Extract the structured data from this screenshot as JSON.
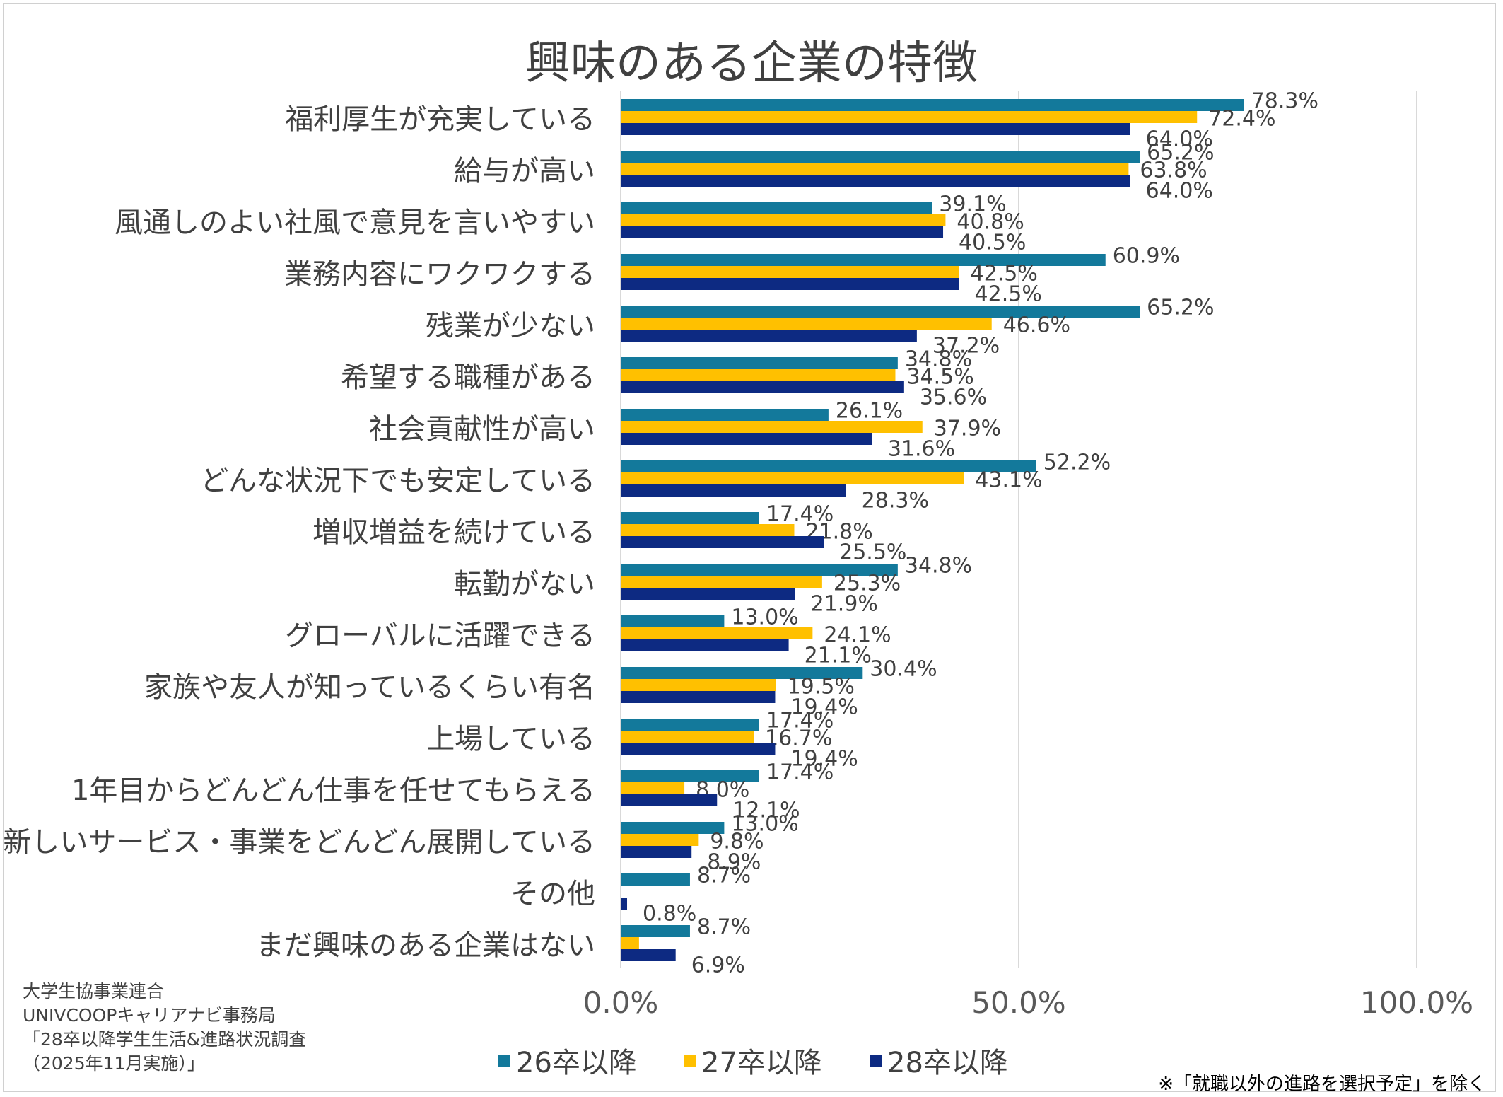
{
  "chart_data": {
    "type": "bar",
    "orientation": "horizontal",
    "title": "興味のある企業の特徴",
    "categories": [
      "福利厚生が充実している",
      "給与が高い",
      "風通しのよい社風で意見を言いやすい",
      "業務内容にワクワクする",
      "残業が少ない",
      "希望する職種がある",
      "社会貢献性が高い",
      "どんな状況下でも安定している",
      "増収増益を続けている",
      "転勤がない",
      "グローバルに活躍できる",
      "家族や友人が知っているくらい有名",
      "上場している",
      "1年目からどんどん仕事を任せてもらえる",
      "新しいサービス・事業をどんどん展開している",
      "その他",
      "まだ興味のある企業はない"
    ],
    "series": [
      {
        "name": "26卒以降",
        "color": "#13799b",
        "values": [
          78.3,
          65.2,
          39.1,
          60.9,
          65.2,
          34.8,
          26.1,
          52.2,
          17.4,
          34.8,
          13.0,
          30.4,
          17.4,
          17.4,
          13.0,
          8.7,
          8.7
        ],
        "labels": [
          "78.3%",
          "65.2%",
          "39.1%",
          "60.9%",
          "65.2%",
          "34.8%",
          "26.1%",
          "52.2%",
          "17.4%",
          "34.8%",
          "13.0%",
          "30.4%",
          "17.4%",
          "17.4%",
          "13.0%",
          "8.7%",
          "8.7%"
        ]
      },
      {
        "name": "27卒以降",
        "color": "#ffc000",
        "values": [
          72.4,
          63.8,
          40.8,
          42.5,
          46.6,
          34.5,
          37.9,
          43.1,
          21.8,
          25.3,
          24.1,
          19.5,
          16.7,
          8.0,
          9.8,
          0,
          2.3
        ],
        "labels": [
          "72.4%",
          "63.8%",
          "40.8%",
          "42.5%",
          "46.6%",
          "34.5%",
          "37.9%",
          "43.1%",
          "21.8%",
          "25.3%",
          "24.1%",
          "19.5%",
          "16.7%",
          "8.0%",
          "9.8%",
          "",
          ""
        ]
      },
      {
        "name": "28卒以降",
        "color": "#0d2a82",
        "values": [
          64.0,
          64.0,
          40.5,
          42.5,
          37.2,
          35.6,
          31.6,
          28.3,
          25.5,
          21.9,
          21.1,
          19.4,
          19.4,
          12.1,
          8.9,
          0.8,
          6.9
        ],
        "labels": [
          "64.0%",
          "64.0%",
          "40.5%",
          "42.5%",
          "37.2%",
          "35.6%",
          "31.6%",
          "28.3%",
          "25.5%",
          "21.9%",
          "21.1%",
          "19.4%",
          "19.4%",
          "12.1%",
          "8.9%",
          "0.8%",
          "6.9%"
        ]
      }
    ],
    "xlim": [
      0,
      100
    ],
    "xticks": [
      0,
      50,
      100
    ],
    "xtick_labels": [
      "0.0%",
      "50.0%",
      "100.0%"
    ],
    "grid": true,
    "legend_position": "bottom"
  },
  "source_lines": [
    "大学生協事業連合",
    "UNIVCOOPキャリアナビ事務局",
    "「28卒以降学生生活&進路状況調査",
    "（2025年11月実施）」"
  ],
  "footnote": "※「就職以外の進路を選択予定」を除く"
}
